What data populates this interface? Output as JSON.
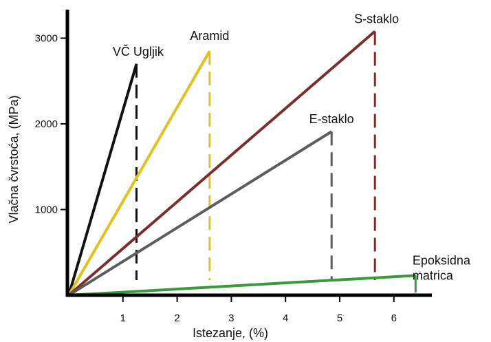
{
  "chart_data": {
    "type": "line",
    "title": "",
    "xlabel": "Istezanje, (%)",
    "ylabel": "Vlačna čvrstoća, (MPa)",
    "xlim": [
      0,
      6.75
    ],
    "ylim": [
      0,
      3300
    ],
    "x_ticks": [
      1,
      2,
      3,
      4,
      5,
      6
    ],
    "y_ticks": [
      1000,
      2000,
      3000
    ],
    "grid": false,
    "legend": "none",
    "series": [
      {
        "name": "VČ Ugljik",
        "color": "#111111",
        "x": [
          0,
          1.25
        ],
        "y": [
          0,
          2700
        ],
        "failure_x": 1.25
      },
      {
        "name": "Aramid",
        "color": "#e3c11c",
        "x": [
          0,
          2.6
        ],
        "y": [
          0,
          2850
        ],
        "failure_x": 2.6
      },
      {
        "name": "S-staklo",
        "color": "#7a2e2a",
        "x": [
          0,
          5.65
        ],
        "y": [
          0,
          3080
        ],
        "failure_x": 5.65
      },
      {
        "name": "E-staklo",
        "color": "#5c5c5c",
        "x": [
          0,
          4.85
        ],
        "y": [
          0,
          1910
        ],
        "failure_x": 4.85
      },
      {
        "name": "Epoksidna matrica",
        "color": "#3a9a3a",
        "x": [
          0,
          6.4
        ],
        "y": [
          0,
          230
        ],
        "failure_x": 6.4
      }
    ]
  }
}
